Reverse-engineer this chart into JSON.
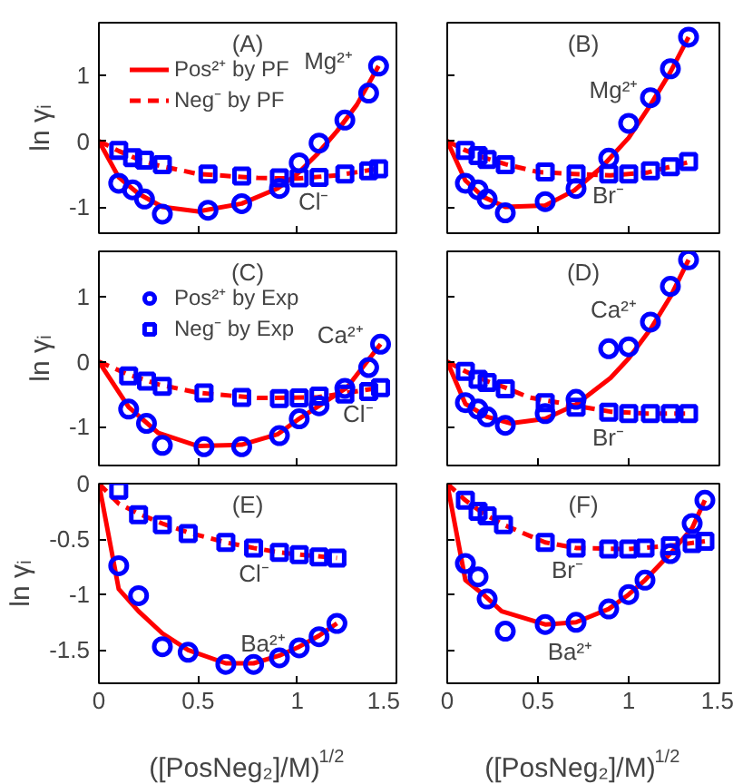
{
  "chart_data": [
    {
      "type": "line",
      "title": "(A)",
      "ylabel": "ln γᵢ",
      "xlim": [
        0,
        1.5
      ],
      "ylim": [
        -1.4,
        1.8
      ],
      "xticks": [
        0,
        0.5,
        1,
        1.5
      ],
      "yticks": [
        -1,
        0,
        1
      ],
      "tick_labels": "y",
      "grid": false,
      "legend": "top left",
      "annotations": [
        "Mg²⁺",
        "Cl⁻"
      ],
      "series": [
        {
          "name": "Pos²⁺ by PF",
          "line_style": "solid",
          "color": "#ff0000",
          "x": [
            0,
            0.1,
            0.2,
            0.32,
            0.5,
            0.72,
            0.9,
            1.0,
            1.1,
            1.2,
            1.3,
            1.41
          ],
          "values": [
            0,
            -0.55,
            -0.8,
            -1.0,
            -1.07,
            -0.95,
            -0.72,
            -0.5,
            -0.2,
            0.15,
            0.55,
            1.14
          ]
        },
        {
          "name": "Neg⁻ by PF",
          "line_style": "dashed",
          "color": "#ff0000",
          "x": [
            0,
            0.1,
            0.2,
            0.3,
            0.5,
            0.8,
            1.0,
            1.2,
            1.41
          ],
          "values": [
            0,
            -0.15,
            -0.28,
            -0.37,
            -0.5,
            -0.56,
            -0.57,
            -0.52,
            -0.42
          ]
        },
        {
          "type": "scatter",
          "marker": "circle",
          "color": "#0000ff",
          "x": [
            0.1,
            0.17,
            0.23,
            0.32,
            0.55,
            0.72,
            0.91,
            1.01,
            1.11,
            1.24,
            1.36,
            1.41
          ],
          "values": [
            -0.64,
            -0.74,
            -0.88,
            -1.11,
            -1.05,
            -0.95,
            -0.72,
            -0.33,
            -0.03,
            0.32,
            0.73,
            1.14
          ]
        },
        {
          "type": "scatter",
          "marker": "square",
          "color": "#0000ff",
          "x": [
            0.1,
            0.17,
            0.23,
            0.32,
            0.55,
            0.72,
            0.91,
            1.01,
            1.11,
            1.24,
            1.36,
            1.41
          ],
          "values": [
            -0.14,
            -0.25,
            -0.29,
            -0.36,
            -0.5,
            -0.53,
            -0.56,
            -0.56,
            -0.55,
            -0.5,
            -0.45,
            -0.42
          ]
        }
      ]
    },
    {
      "type": "line",
      "title": "(B)",
      "xlim": [
        0,
        1.5
      ],
      "ylim": [
        -1.4,
        1.8
      ],
      "xticks": [
        0,
        0.5,
        1,
        1.5
      ],
      "yticks": [
        -1,
        0,
        1
      ],
      "tick_labels": false,
      "grid": false,
      "annotations": [
        "Mg²⁺",
        "Br⁻"
      ],
      "series": [
        {
          "line_style": "solid",
          "color": "#ff0000",
          "x": [
            0,
            0.1,
            0.2,
            0.32,
            0.54,
            0.7,
            0.85,
            1.0,
            1.12,
            1.23,
            1.33
          ],
          "values": [
            0,
            -0.6,
            -0.85,
            -1.0,
            -0.98,
            -0.75,
            -0.4,
            0.05,
            0.55,
            1.05,
            1.58
          ]
        },
        {
          "line_style": "dashed",
          "color": "#ff0000",
          "x": [
            0,
            0.1,
            0.2,
            0.32,
            0.5,
            0.7,
            0.9,
            1.1,
            1.33
          ],
          "values": [
            0,
            -0.14,
            -0.25,
            -0.35,
            -0.47,
            -0.5,
            -0.52,
            -0.48,
            -0.32
          ]
        },
        {
          "type": "scatter",
          "marker": "circle",
          "color": "#0000ff",
          "x": [
            0.1,
            0.17,
            0.22,
            0.32,
            0.54,
            0.71,
            0.89,
            1.0,
            1.12,
            1.23,
            1.33
          ],
          "values": [
            -0.64,
            -0.74,
            -0.88,
            -1.09,
            -0.92,
            -0.72,
            -0.26,
            0.27,
            0.66,
            1.1,
            1.58
          ]
        },
        {
          "type": "scatter",
          "marker": "square",
          "color": "#0000ff",
          "x": [
            0.1,
            0.17,
            0.22,
            0.32,
            0.54,
            0.71,
            0.89,
            1.0,
            1.12,
            1.23,
            1.33
          ],
          "values": [
            -0.14,
            -0.22,
            -0.28,
            -0.36,
            -0.47,
            -0.5,
            -0.5,
            -0.5,
            -0.45,
            -0.39,
            -0.31
          ]
        }
      ]
    },
    {
      "type": "line",
      "title": "(C)",
      "ylabel": "ln γᵢ",
      "xlim": [
        0,
        1.5
      ],
      "ylim": [
        -1.6,
        1.7
      ],
      "xticks": [
        0,
        0.5,
        1,
        1.5
      ],
      "yticks": [
        -1,
        0,
        1
      ],
      "tick_labels": "y",
      "grid": false,
      "legend": "top left",
      "annotations": [
        "Ca²⁺",
        "Cl⁻"
      ],
      "series": [
        {
          "line_style": "solid",
          "color": "#ff0000",
          "x": [
            0,
            0.15,
            0.3,
            0.5,
            0.72,
            0.9,
            1.0,
            1.1,
            1.25,
            1.42
          ],
          "values": [
            0,
            -0.7,
            -1.1,
            -1.3,
            -1.28,
            -1.12,
            -0.9,
            -0.7,
            -0.4,
            0.27
          ]
        },
        {
          "line_style": "dashed",
          "color": "#ff0000",
          "x": [
            0,
            0.15,
            0.3,
            0.5,
            0.8,
            1.1,
            1.42
          ],
          "values": [
            0,
            -0.2,
            -0.35,
            -0.48,
            -0.56,
            -0.55,
            -0.4
          ]
        },
        {
          "type": "scatter",
          "name": "Pos²⁺ by Exp",
          "marker": "circle",
          "color": "#0000ff",
          "x": [
            0.15,
            0.24,
            0.32,
            0.53,
            0.72,
            0.91,
            1.01,
            1.11,
            1.24,
            1.36,
            1.42
          ],
          "values": [
            -0.73,
            -0.95,
            -1.29,
            -1.31,
            -1.31,
            -1.14,
            -0.88,
            -0.68,
            -0.41,
            -0.09,
            0.27
          ]
        },
        {
          "type": "scatter",
          "name": "Neg⁻ by Exp",
          "marker": "square",
          "color": "#0000ff",
          "x": [
            0.15,
            0.24,
            0.32,
            0.53,
            0.72,
            0.91,
            1.01,
            1.11,
            1.24,
            1.36,
            1.42
          ],
          "values": [
            -0.22,
            -0.3,
            -0.38,
            -0.48,
            -0.55,
            -0.57,
            -0.56,
            -0.53,
            -0.5,
            -0.46,
            -0.4
          ]
        }
      ]
    },
    {
      "type": "line",
      "title": "(D)",
      "xlim": [
        0,
        1.5
      ],
      "ylim": [
        -1.6,
        1.7
      ],
      "xticks": [
        0,
        0.5,
        1,
        1.5
      ],
      "yticks": [
        -1,
        0,
        1
      ],
      "tick_labels": false,
      "grid": false,
      "annotations": [
        "Ca²⁺",
        "Br⁻"
      ],
      "series": [
        {
          "line_style": "solid",
          "color": "#ff0000",
          "x": [
            0,
            0.1,
            0.22,
            0.35,
            0.54,
            0.71,
            0.9,
            1.0,
            1.12,
            1.23,
            1.33
          ],
          "values": [
            0,
            -0.65,
            -0.85,
            -0.95,
            -0.88,
            -0.66,
            -0.25,
            0.05,
            0.5,
            1.0,
            1.57
          ]
        },
        {
          "line_style": "dashed",
          "color": "#ff0000",
          "x": [
            0,
            0.1,
            0.22,
            0.32,
            0.45,
            0.71,
            0.9,
            1.1,
            1.33
          ],
          "values": [
            0,
            -0.15,
            -0.3,
            -0.4,
            -0.55,
            -0.68,
            -0.77,
            -0.8,
            -0.8
          ]
        },
        {
          "type": "scatter",
          "marker": "circle",
          "color": "#0000ff",
          "x": [
            0.1,
            0.17,
            0.22,
            0.32,
            0.54,
            0.71,
            0.89,
            1.0,
            1.12,
            1.23,
            1.33
          ],
          "values": [
            -0.63,
            -0.73,
            -0.85,
            -0.98,
            -0.8,
            -0.58,
            0.2,
            0.23,
            0.61,
            1.16,
            1.57
          ]
        },
        {
          "type": "scatter",
          "marker": "square",
          "color": "#0000ff",
          "x": [
            0.1,
            0.17,
            0.22,
            0.32,
            0.54,
            0.71,
            0.89,
            1.0,
            1.12,
            1.23,
            1.33
          ],
          "values": [
            -0.15,
            -0.27,
            -0.32,
            -0.42,
            -0.63,
            -0.7,
            -0.78,
            -0.8,
            -0.8,
            -0.8,
            -0.8
          ]
        }
      ]
    },
    {
      "type": "line",
      "title": "(E)",
      "ylabel": "ln γᵢ",
      "xlabel": "([PosNeg₂]/M)$^{1/2}$",
      "xlim": [
        0,
        1.5
      ],
      "ylim": [
        -1.8,
        0
      ],
      "xticks": [
        0,
        0.5,
        1,
        1.5
      ],
      "yticks": [
        -1.5,
        -1,
        -0.5,
        0
      ],
      "grid": false,
      "annotations": [
        "Cl⁻",
        "Ba²⁺"
      ],
      "series": [
        {
          "line_style": "solid",
          "color": "#ff0000",
          "x": [
            0,
            0.1,
            0.2,
            0.32,
            0.45,
            0.64,
            0.78,
            0.91,
            1.01,
            1.11,
            1.2
          ],
          "values": [
            0,
            -0.95,
            -1.15,
            -1.35,
            -1.5,
            -1.62,
            -1.62,
            -1.55,
            -1.47,
            -1.37,
            -1.26
          ]
        },
        {
          "line_style": "dashed",
          "color": "#ff0000",
          "x": [
            0,
            0.1,
            0.2,
            0.32,
            0.45,
            0.64,
            0.78,
            0.91,
            1.01,
            1.2
          ],
          "values": [
            0,
            -0.18,
            -0.27,
            -0.36,
            -0.44,
            -0.53,
            -0.58,
            -0.62,
            -0.64,
            -0.67
          ]
        },
        {
          "type": "scatter",
          "marker": "circle",
          "color": "#0000ff",
          "x": [
            0.1,
            0.2,
            0.32,
            0.45,
            0.64,
            0.78,
            0.91,
            1.01,
            1.11,
            1.2
          ],
          "values": [
            -0.74,
            -1.01,
            -1.47,
            -1.52,
            -1.63,
            -1.63,
            -1.57,
            -1.48,
            -1.38,
            -1.26
          ]
        },
        {
          "type": "scatter",
          "marker": "square",
          "color": "#0000ff",
          "x": [
            0.1,
            0.2,
            0.32,
            0.45,
            0.64,
            0.78,
            0.91,
            1.01,
            1.11,
            1.2
          ],
          "values": [
            -0.06,
            -0.28,
            -0.37,
            -0.45,
            -0.53,
            -0.58,
            -0.62,
            -0.64,
            -0.66,
            -0.67
          ]
        }
      ]
    },
    {
      "type": "line",
      "title": "(F)",
      "xlabel": "([PosNeg₂]/M)$^{1/2}$",
      "xlim": [
        0,
        1.5
      ],
      "ylim": [
        -1.8,
        0
      ],
      "xticks": [
        0,
        0.5,
        1,
        1.5
      ],
      "yticks": [
        -1.5,
        -1,
        -0.5,
        0
      ],
      "tick_labels": "x",
      "grid": false,
      "annotations": [
        "Br⁻",
        "Ba²⁺"
      ],
      "series": [
        {
          "line_style": "solid",
          "color": "#ff0000",
          "x": [
            0,
            0.1,
            0.2,
            0.3,
            0.54,
            0.71,
            0.89,
            1.0,
            1.09,
            1.23,
            1.35,
            1.42
          ],
          "values": [
            0,
            -0.87,
            -1.0,
            -1.15,
            -1.27,
            -1.25,
            -1.13,
            -1.0,
            -0.87,
            -0.63,
            -0.4,
            -0.15
          ]
        },
        {
          "line_style": "dashed",
          "color": "#ff0000",
          "x": [
            0,
            0.1,
            0.2,
            0.31,
            0.54,
            0.71,
            1.0,
            1.23,
            1.42
          ],
          "values": [
            0,
            -0.15,
            -0.27,
            -0.37,
            -0.53,
            -0.58,
            -0.59,
            -0.56,
            -0.52
          ]
        },
        {
          "type": "scatter",
          "marker": "circle",
          "color": "#0000ff",
          "x": [
            0.1,
            0.17,
            0.22,
            0.32,
            0.54,
            0.71,
            0.89,
            1.0,
            1.09,
            1.23,
            1.35,
            1.42
          ],
          "values": [
            -0.72,
            -0.84,
            -1.04,
            -1.33,
            -1.27,
            -1.25,
            -1.13,
            -1.0,
            -0.87,
            -0.63,
            -0.36,
            -0.15
          ]
        },
        {
          "type": "scatter",
          "marker": "square",
          "color": "#0000ff",
          "x": [
            0.1,
            0.17,
            0.22,
            0.31,
            0.54,
            0.71,
            0.89,
            1.0,
            1.09,
            1.23,
            1.35,
            1.42
          ],
          "values": [
            -0.15,
            -0.25,
            -0.29,
            -0.37,
            -0.53,
            -0.58,
            -0.59,
            -0.59,
            -0.58,
            -0.56,
            -0.54,
            -0.52
          ]
        }
      ]
    }
  ]
}
